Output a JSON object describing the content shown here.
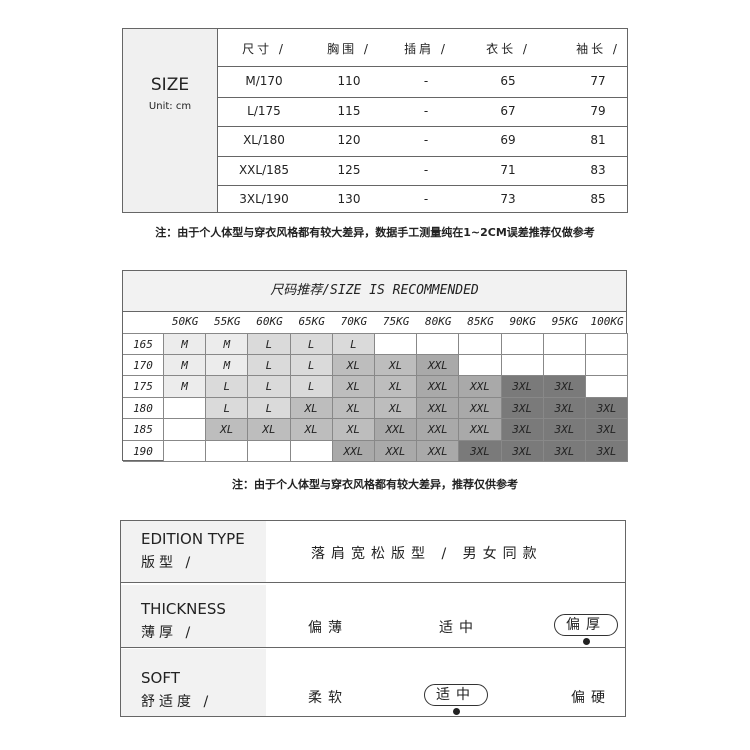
{
  "size_table": {
    "title": "SIZE",
    "unit": "Unit: cm",
    "headers": [
      "尺寸 /",
      "胸围 /",
      "插肩 /",
      "衣长 /",
      "袖长 /"
    ],
    "rows": [
      [
        "M/170",
        "110",
        "-",
        "65",
        "77"
      ],
      [
        "L/175",
        "115",
        "-",
        "67",
        "79"
      ],
      [
        "XL/180",
        "120",
        "-",
        "69",
        "81"
      ],
      [
        "XXL/185",
        "125",
        "-",
        "71",
        "83"
      ],
      [
        "3XL/190",
        "130",
        "-",
        "73",
        "85"
      ]
    ],
    "note": "注：由于个人体型与穿衣风格都有较大差异，数据手工测量纯在1~2CM误差推荐仅做参考"
  },
  "recommend_table": {
    "title": "尺码推荐/SIZE IS RECOMMENDED",
    "weights": [
      "50KG",
      "55KG",
      "60KG",
      "65KG",
      "70KG",
      "75KG",
      "80KG",
      "85KG",
      "90KG",
      "95KG",
      "100KG"
    ],
    "heights": [
      "165",
      "170",
      "175",
      "180",
      "185",
      "190"
    ],
    "grid": [
      [
        "M",
        "M",
        "L",
        "L",
        "L",
        "",
        "",
        "",
        "",
        "",
        ""
      ],
      [
        "M",
        "M",
        "L",
        "L",
        "XL",
        "XL",
        "XXL",
        "",
        "",
        "",
        ""
      ],
      [
        "M",
        "L",
        "L",
        "L",
        "XL",
        "XL",
        "XXL",
        "XXL",
        "3XL",
        "3XL",
        ""
      ],
      [
        "",
        "L",
        "L",
        "XL",
        "XL",
        "XL",
        "XXL",
        "XXL",
        "3XL",
        "3XL",
        "3XL"
      ],
      [
        "",
        "XL",
        "XL",
        "XL",
        "XL",
        "XXL",
        "XXL",
        "XXL",
        "3XL",
        "3XL",
        "3XL"
      ],
      [
        "",
        "",
        "",
        "",
        "XXL",
        "XXL",
        "XXL",
        "3XL",
        "3XL",
        "3XL",
        "3XL"
      ]
    ],
    "colors": {
      "M": "#ececec",
      "L": "#dadada",
      "XL": "#bdbdbd",
      "XXL": "#a9a9a9",
      "3XL": "#7a7a7a",
      "": "#ffffff"
    },
    "note": "注：由于个人体型与穿衣风格都有较大差异，推荐仅供参考"
  },
  "attributes": {
    "edition": {
      "label_en": "EDITION TYPE",
      "label_zh": "版型 /",
      "value": "落肩宽松版型 / 男女同款"
    },
    "thickness": {
      "label_en": "THICKNESS",
      "label_zh": "薄厚 /",
      "options": [
        "偏薄",
        "适中",
        "偏厚"
      ],
      "selected": "偏厚"
    },
    "soft": {
      "label_en": "SOFT",
      "label_zh": "舒适度 /",
      "options": [
        "柔软",
        "适中",
        "偏硬"
      ],
      "selected": "适中"
    }
  }
}
